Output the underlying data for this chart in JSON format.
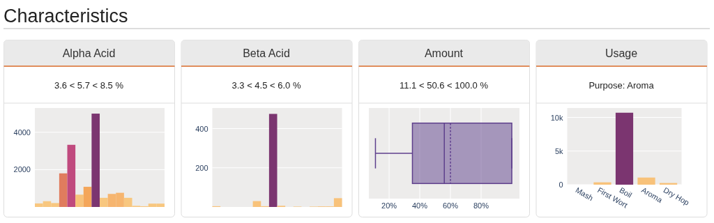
{
  "chart_data": [
    {
      "type": "bar",
      "title": "Alpha Acid",
      "subtitle": "3.6 < 5.7 < 8.5 %",
      "annotations": [
        "Characteristics"
      ],
      "categories": [
        null,
        null,
        null,
        null,
        null,
        null,
        null,
        null,
        null,
        null,
        null,
        null,
        null,
        null,
        null,
        null
      ],
      "values": [
        190,
        310,
        210,
        1800,
        3330,
        660,
        1080,
        5000,
        490,
        700,
        760,
        490,
        60,
        40,
        180,
        180
      ],
      "colors": [
        "#f8c77f",
        "#f8c77f",
        "#f8c77f",
        "#e07c5e",
        "#c04a7e",
        "#f8c27a",
        "#f4a65a",
        "#7b3570",
        "#f8c77f",
        "#f6b56f",
        "#f6b56f",
        "#f8c77f",
        "#f8c77f",
        "#f8c77f",
        "#f8c77f",
        "#f8c77f"
      ],
      "ylim": [
        0,
        5300
      ],
      "yticks": [
        2000,
        4000
      ],
      "grid": "y",
      "tick_labels": "y"
    },
    {
      "type": "bar",
      "title": "Beta Acid",
      "subtitle": "3.3 < 4.5 < 6.0 %",
      "categories": [
        null,
        null,
        null,
        null,
        null,
        null,
        null,
        null,
        null,
        null,
        null,
        null,
        null,
        null,
        null,
        null
      ],
      "values": [
        4,
        0,
        0,
        0,
        0,
        30,
        4,
        475,
        6,
        0,
        2,
        0,
        2,
        3,
        3,
        45
      ],
      "colors": [
        "#f8c27a",
        "#f8c27a",
        "#f8c27a",
        "#f8c27a",
        "#f8c27a",
        "#f8c27a",
        "#f8c27a",
        "#7b3570",
        "#f8c27a",
        "#f8c27a",
        "#f8c27a",
        "#f8c27a",
        "#f8c27a",
        "#f8c27a",
        "#f8c27a",
        "#f8c27a"
      ],
      "ylim": [
        0,
        505
      ],
      "yticks": [
        200,
        400
      ],
      "grid": "y",
      "tick_labels": "y"
    },
    {
      "type": "box",
      "title": "Amount",
      "subtitle": "11.1 < 50.6 < 100.0 %",
      "orientation": "horizontal",
      "categories": [
        null
      ],
      "color": "#5e3f8c",
      "boxes": [
        {
          "low": 11.1,
          "q1": 35.2,
          "median": 56,
          "q3": 100,
          "high": 100,
          "mean": 60
        }
      ],
      "xlim": [
        6.8,
        105
      ],
      "xticks": [
        {
          "value": 20,
          "label": "20%"
        },
        {
          "value": 40,
          "label": "40%"
        },
        {
          "value": 60,
          "label": "60%"
        },
        {
          "value": 80,
          "label": "80%"
        }
      ],
      "grid": "x",
      "tick_labels": "x"
    },
    {
      "type": "bar",
      "title": "Usage",
      "subtitle": "Purpose: Aroma",
      "categories": [
        "Mash",
        "First Wort",
        "Boil",
        "Aroma",
        "Dry Hop"
      ],
      "values": [
        0,
        350,
        10700,
        1060,
        250
      ],
      "colors": [
        "#f8c27a",
        "#f8c27a",
        "#7b3570",
        "#f8c27a",
        "#f8c27a"
      ],
      "ylim": [
        0,
        11400
      ],
      "yticks": [
        {
          "value": 0,
          "label": "0"
        },
        {
          "value": 5000,
          "label": "5k"
        },
        {
          "value": 10000,
          "label": "10k"
        }
      ],
      "grid": "y"
    }
  ]
}
